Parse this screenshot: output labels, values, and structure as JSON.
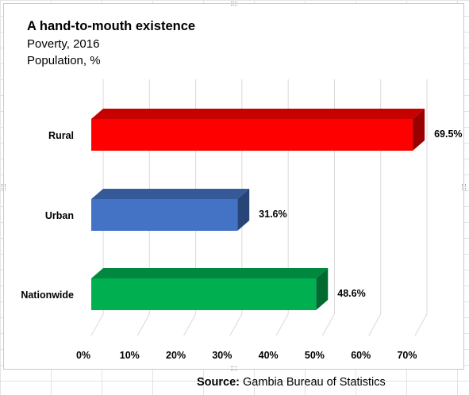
{
  "chart_data": {
    "type": "bar",
    "orientation": "horizontal",
    "title": "A hand-to-mouth existence",
    "subtitle": "Poverty, 2016",
    "unit_line": "Population, %",
    "categories": [
      "Rural",
      "Urban",
      "Nationwide"
    ],
    "values": [
      69.5,
      31.6,
      48.6
    ],
    "value_labels": [
      "69.5%",
      "31.6%",
      "48.6%"
    ],
    "bar_colors": [
      "#ff0000",
      "#4472c4",
      "#00b050"
    ],
    "x_ticks": [
      "0%",
      "10%",
      "20%",
      "30%",
      "40%",
      "50%",
      "60%",
      "70%"
    ],
    "xlim": [
      0,
      70
    ],
    "grid": "vertical",
    "style": "3d"
  },
  "source": {
    "label": "Source:",
    "text": " Gambia Bureau of Statistics"
  }
}
